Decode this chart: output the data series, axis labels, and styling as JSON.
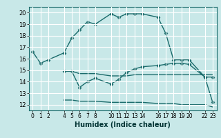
{
  "xlabel": "Humidex (Indice chaleur)",
  "bg_color": "#c8e8e8",
  "grid_color": "#ffffff",
  "line_color": "#1a6b6b",
  "markersize": 2.5,
  "linewidth": 1.0,
  "xlim": [
    -0.5,
    23.5
  ],
  "ylim": [
    11.5,
    20.5
  ],
  "yticks": [
    12,
    13,
    14,
    15,
    16,
    17,
    18,
    19,
    20
  ],
  "xticks": [
    0,
    1,
    2,
    4,
    5,
    6,
    7,
    8,
    10,
    11,
    12,
    13,
    14,
    16,
    17,
    18,
    19,
    20,
    22,
    23
  ],
  "xtick_labels": [
    "0",
    "1",
    "2",
    "4",
    "5",
    "6",
    "7",
    "8",
    "10",
    "11",
    "12",
    "13",
    "14",
    "16",
    "17",
    "18",
    "19",
    "20",
    "22",
    "23"
  ],
  "line1_x": [
    0,
    1,
    2,
    4,
    5,
    6,
    7,
    8,
    10,
    11,
    12,
    13,
    14,
    16,
    17,
    18,
    19,
    20,
    22,
    23
  ],
  "line1_y": [
    16.6,
    15.6,
    15.9,
    16.5,
    17.8,
    18.5,
    19.2,
    19.0,
    19.9,
    19.6,
    19.9,
    19.9,
    19.9,
    19.6,
    18.2,
    15.9,
    15.9,
    15.9,
    14.4,
    12.2
  ],
  "line2_x": [
    4,
    5,
    6,
    7,
    8,
    10,
    11,
    12,
    13,
    14,
    16,
    17,
    18,
    19,
    20,
    22,
    23
  ],
  "line2_y": [
    14.9,
    14.9,
    13.5,
    14.0,
    14.3,
    13.8,
    14.2,
    14.8,
    15.1,
    15.3,
    15.4,
    15.5,
    15.6,
    15.6,
    15.5,
    14.4,
    14.4
  ],
  "line3_x": [
    4,
    5,
    6,
    7,
    8,
    10,
    11,
    12,
    13,
    14,
    16,
    17,
    18,
    19,
    20,
    22,
    23
  ],
  "line3_y": [
    14.9,
    14.9,
    14.7,
    14.7,
    14.7,
    14.5,
    14.5,
    14.5,
    14.6,
    14.6,
    14.6,
    14.6,
    14.6,
    14.6,
    14.6,
    14.6,
    14.6
  ],
  "line4_x": [
    4,
    5,
    6,
    7,
    8,
    10,
    11,
    12,
    13,
    14,
    16,
    17,
    18,
    19,
    20,
    22,
    23
  ],
  "line4_y": [
    12.4,
    12.4,
    12.3,
    12.3,
    12.3,
    12.2,
    12.2,
    12.2,
    12.2,
    12.2,
    12.1,
    12.1,
    12.1,
    12.0,
    12.0,
    12.0,
    11.8
  ]
}
